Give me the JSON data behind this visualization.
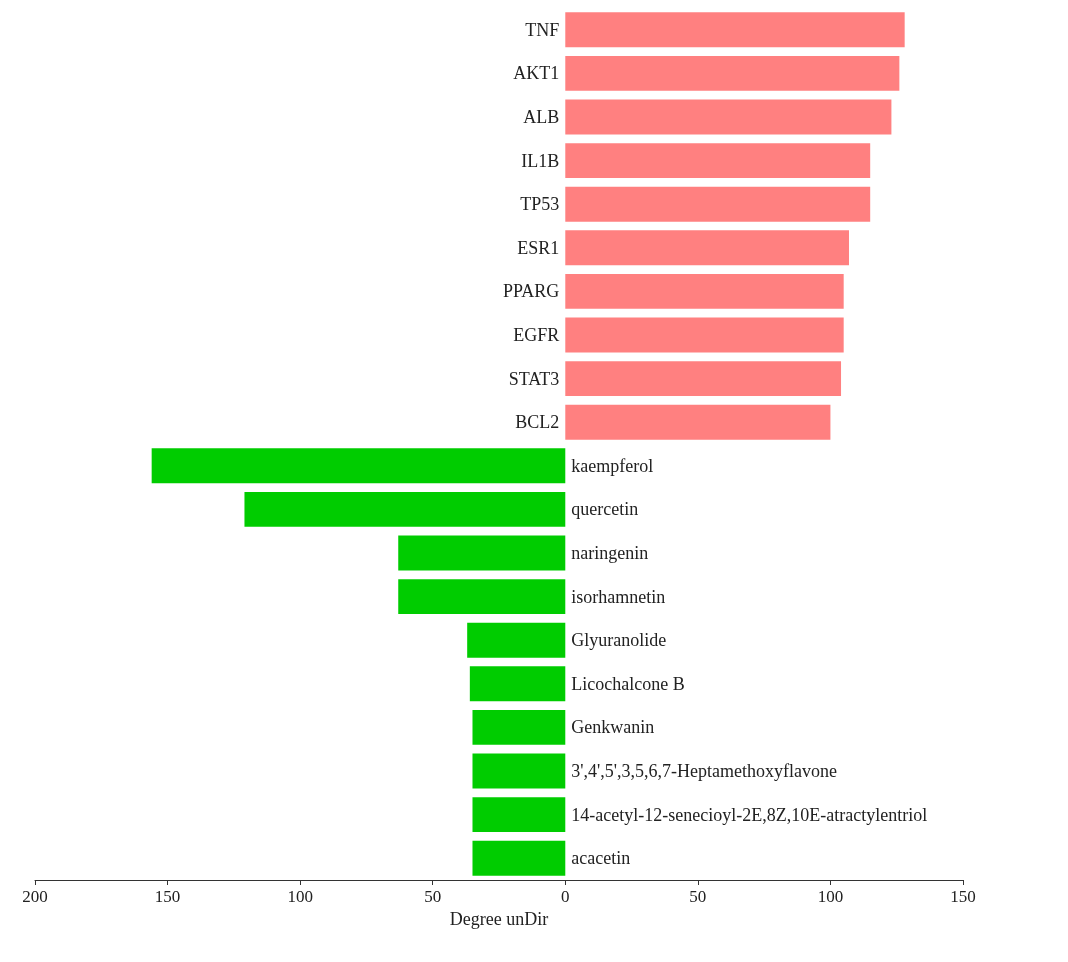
{
  "chart_data": {
    "type": "bar",
    "orientation": "horizontal",
    "xlabel": "Degree unDir",
    "categories": [
      "TNF",
      "AKT1",
      "ALB",
      "IL1B",
      "TP53",
      "ESR1",
      "PPARG",
      "EGFR",
      "STAT3",
      "BCL2",
      "kaempferol",
      "quercetin",
      "naringenin",
      "isorhamnetin",
      "Glyuranolide",
      "Licochalcone B",
      "Genkwanin",
      "3',4',5',3,5,6,7-Heptamethoxyflavone",
      "14-acetyl-12-senecioyl-2E,8Z,10E-atractylentriol",
      "acacetin"
    ],
    "values": [
      128,
      126,
      123,
      115,
      115,
      107,
      105,
      105,
      104,
      100,
      -156,
      -121,
      -63,
      -63,
      -37,
      -36,
      -35,
      -35,
      -35,
      -35
    ],
    "colors": [
      "#ff8080",
      "#ff8080",
      "#ff8080",
      "#ff8080",
      "#ff8080",
      "#ff8080",
      "#ff8080",
      "#ff8080",
      "#ff8080",
      "#ff8080",
      "#00cc00",
      "#00cc00",
      "#00cc00",
      "#00cc00",
      "#00cc00",
      "#00cc00",
      "#00cc00",
      "#00cc00",
      "#00cc00",
      "#00cc00"
    ],
    "xlim": [
      -200,
      150
    ],
    "xticks": [
      {
        "value": -200,
        "label": "200"
      },
      {
        "value": -150,
        "label": "150"
      },
      {
        "value": -100,
        "label": "100"
      },
      {
        "value": -50,
        "label": "50"
      },
      0,
      50,
      100,
      150
    ],
    "grid": false
  }
}
